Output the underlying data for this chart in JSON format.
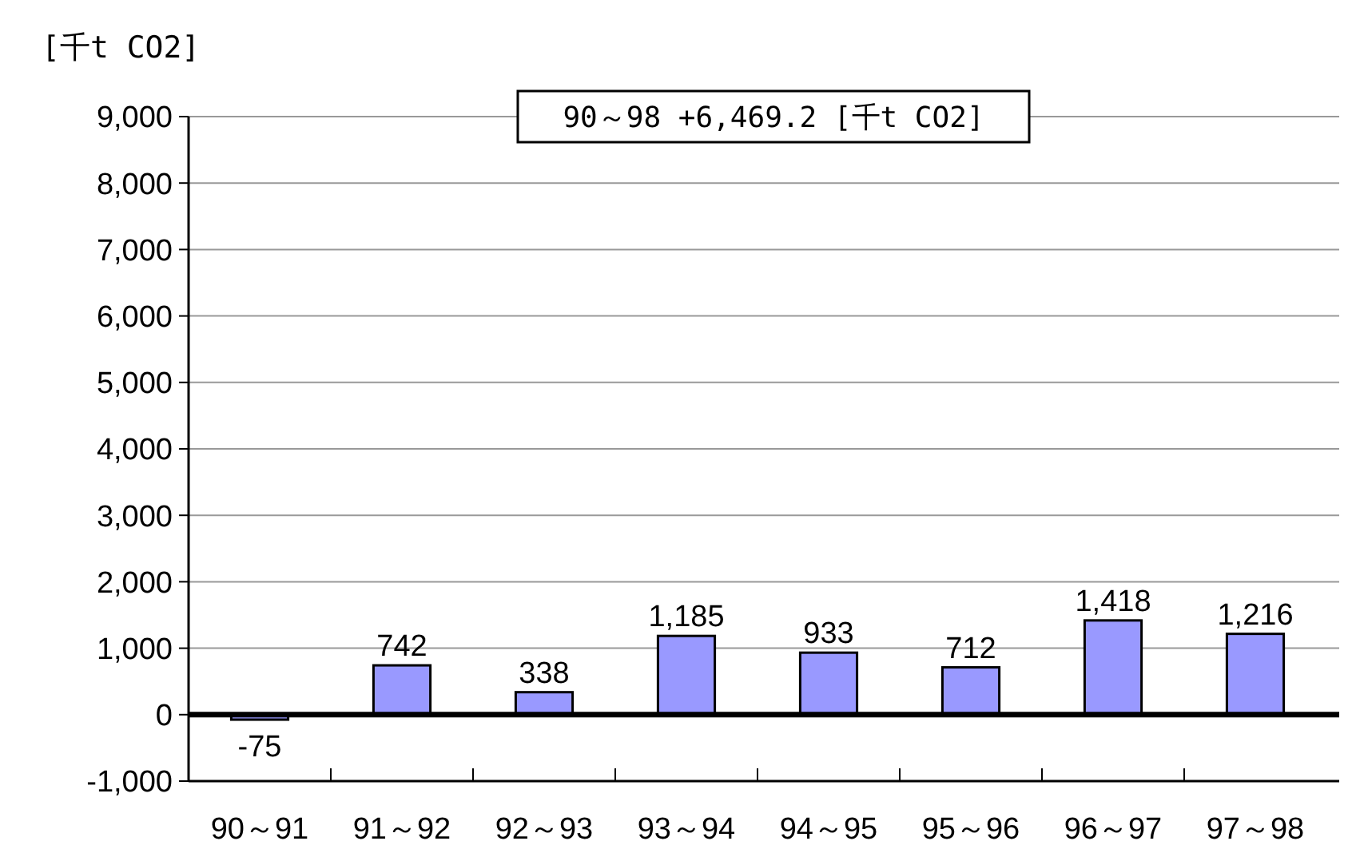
{
  "chart_data": {
    "type": "bar",
    "ylabel": "[千t CO2]",
    "annotations": [
      "90～98 +6,469.2 [千t CO2]"
    ],
    "categories": [
      "90～91",
      "91～92",
      "92～93",
      "93～94",
      "94～95",
      "95～96",
      "96～97",
      "97～98"
    ],
    "values": [
      -75,
      742,
      338,
      1185,
      933,
      712,
      1418,
      1216
    ],
    "value_labels": [
      "-75",
      "742",
      "338",
      "1,185",
      "933",
      "712",
      "1,418",
      "1,216"
    ],
    "color": "#9999ff",
    "ylim": [
      -1000,
      9000
    ],
    "yticks": [
      {
        "value": -1000,
        "label": "-1,000"
      },
      0,
      {
        "value": 1000,
        "label": "1,000"
      },
      {
        "value": 2000,
        "label": "2,000"
      },
      {
        "value": 3000,
        "label": "3,000"
      },
      {
        "value": 4000,
        "label": "4,000"
      },
      {
        "value": 5000,
        "label": "5,000"
      },
      {
        "value": 6000,
        "label": "6,000"
      },
      {
        "value": 7000,
        "label": "7,000"
      },
      {
        "value": 8000,
        "label": "8,000"
      },
      {
        "value": 9000,
        "label": "9,000"
      }
    ],
    "grid": "y"
  }
}
